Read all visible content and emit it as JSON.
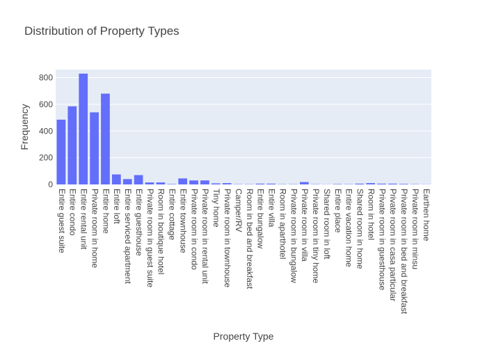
{
  "chart_data": {
    "type": "bar",
    "title": "Distribution of Property Types",
    "xlabel": "Property Type",
    "ylabel": "Frequency",
    "ylim": [
      0,
      860
    ],
    "yticks": [
      0,
      200,
      400,
      600,
      800
    ],
    "bar_color": "#636efa",
    "plot_background": "#e5ecf6",
    "categories": [
      "Entire guest suite",
      "Entire condo",
      "Entire rental unit",
      "Private room in home",
      "Entire home",
      "Entire loft",
      "Entire serviced apartment",
      "Entire guesthouse",
      "Private room in guest suite",
      "Room in boutique hotel",
      "Entire cottage",
      "Entire townhouse",
      "Private room in condo",
      "Private room in rental unit",
      "Tiny home",
      "Private room in townhouse",
      "Camper/RV",
      "Room in bed and breakfast",
      "Entire bungalow",
      "Entire villa",
      "Room in aparthotel",
      "Private room in bungalow",
      "Private room in villa",
      "Private room in tiny home",
      "Shared room in loft",
      "Entire place",
      "Entire vacation home",
      "Shared room in home",
      "Room in hotel",
      "Private room in guesthouse",
      "Private room in casa particular",
      "Private room in bed and breakfast",
      "Private room in minsu",
      "Earthen home"
    ],
    "values": [
      485,
      585,
      830,
      540,
      680,
      75,
      40,
      70,
      15,
      15,
      3,
      45,
      30,
      30,
      8,
      10,
      2,
      2,
      6,
      6,
      2,
      2,
      18,
      2,
      1,
      3,
      2,
      6,
      10,
      6,
      6,
      4,
      2,
      1
    ]
  }
}
